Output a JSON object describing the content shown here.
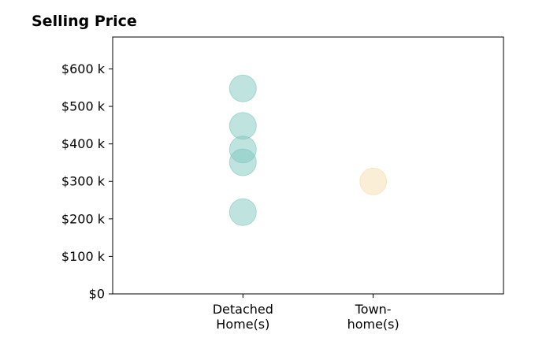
{
  "chart_data": {
    "type": "scatter",
    "title": "Selling Price",
    "xlabel": "",
    "ylabel": "",
    "categories": [
      [
        "Detached",
        "Home(s)"
      ],
      [
        "Town-",
        "home(s)"
      ]
    ],
    "yticks": [
      0,
      100000,
      200000,
      300000,
      400000,
      500000,
      600000
    ],
    "ytick_labels": [
      "$0",
      "$100 k",
      "$200 k",
      "$300 k",
      "$400 k",
      "$500 k",
      "$600 k"
    ],
    "ylim": [
      0,
      685000
    ],
    "xlim": [
      -1,
      2
    ],
    "grid": false,
    "series": [
      {
        "category_index": 0,
        "color": "#7fc8bf",
        "values": [
          548000,
          448000,
          385000,
          351000,
          218000
        ]
      },
      {
        "category_index": 1,
        "color": "#f5deb0",
        "values": [
          300000
        ]
      }
    ]
  }
}
